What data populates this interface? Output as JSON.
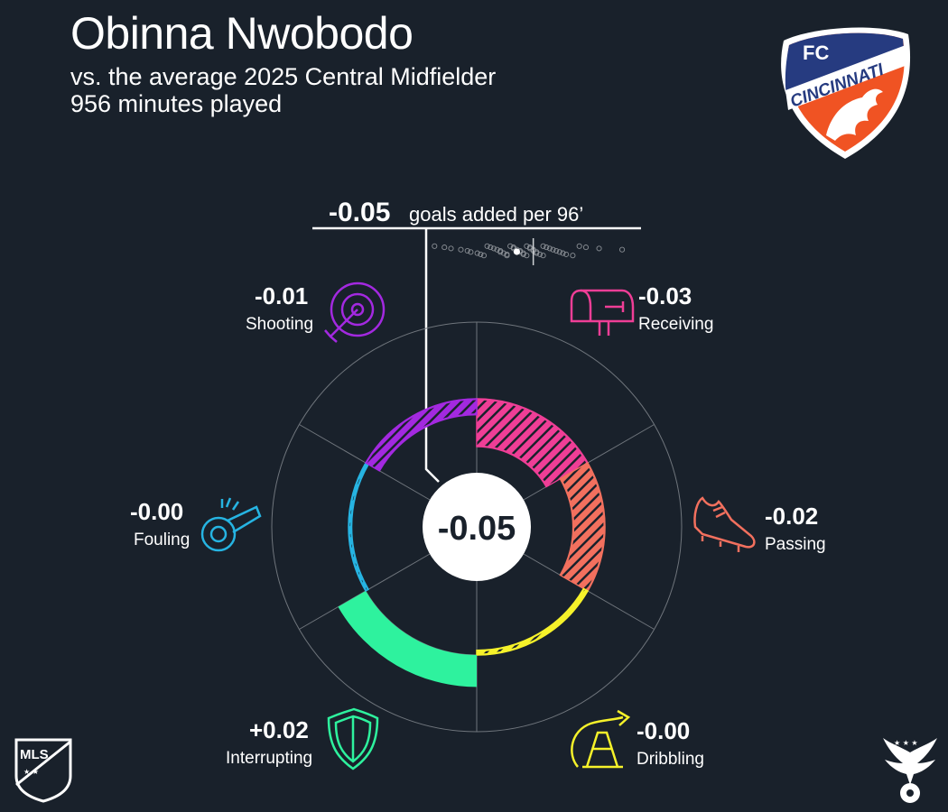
{
  "header": {
    "player_name": "Obinna Nwobodo",
    "comparison": "vs. the average 2025 Central Midfielder",
    "minutes": "956 minutes played"
  },
  "club_logo": {
    "name": "FC Cincinnati",
    "top_text": "FC",
    "ring_text": "CINCINNATI",
    "colors": {
      "blue": "#263b80",
      "orange": "#f05323",
      "white": "#ffffff"
    }
  },
  "league_logo": {
    "text": "MLS"
  },
  "colors": {
    "background": "#19212b",
    "text": "#ffffff",
    "grid": "#6f757c"
  },
  "chart_data": {
    "type": "radial-bar",
    "total": {
      "value": "-0.05",
      "label": "goals added per 96’"
    },
    "center_label": "-0.05",
    "scale_max": 0.06,
    "categories": [
      {
        "name": "Receiving",
        "value": -0.03,
        "label": "-0.03",
        "color": "#ef3e96",
        "icon": "mailbox-icon"
      },
      {
        "name": "Passing",
        "value": -0.02,
        "label": "-0.02",
        "color": "#f2705e",
        "icon": "cleat-icon"
      },
      {
        "name": "Dribbling",
        "value": -0.003,
        "label": "-0.00",
        "color": "#f6f22a",
        "icon": "traffic-cone-icon"
      },
      {
        "name": "Interrupting",
        "value": 0.02,
        "label": "+0.02",
        "color": "#2ef29e",
        "icon": "shield-icon"
      },
      {
        "name": "Fouling",
        "value": -0.002,
        "label": "-0.00",
        "color": "#26b4e2",
        "icon": "whistle-icon"
      },
      {
        "name": "Shooting",
        "value": -0.01,
        "label": "-0.01",
        "color": "#a329e0",
        "icon": "target-icon"
      }
    ],
    "distribution": {
      "range": [
        -0.32,
        0.3
      ],
      "average": 0,
      "player": -0.05,
      "others": [
        -0.3,
        -0.27,
        -0.25,
        -0.22,
        -0.2,
        -0.19,
        -0.17,
        -0.16,
        -0.15,
        -0.14,
        -0.13,
        -0.12,
        -0.11,
        -0.1,
        -0.1,
        -0.09,
        -0.08,
        -0.08,
        -0.07,
        -0.06,
        -0.06,
        -0.05,
        -0.04,
        -0.04,
        -0.03,
        -0.03,
        -0.02,
        -0.02,
        -0.01,
        -0.01,
        0.0,
        0.0,
        0.01,
        0.01,
        0.02,
        0.03,
        0.03,
        0.04,
        0.05,
        0.06,
        0.07,
        0.08,
        0.09,
        0.1,
        0.12,
        0.14,
        0.16,
        0.2,
        0.27
      ]
    }
  }
}
